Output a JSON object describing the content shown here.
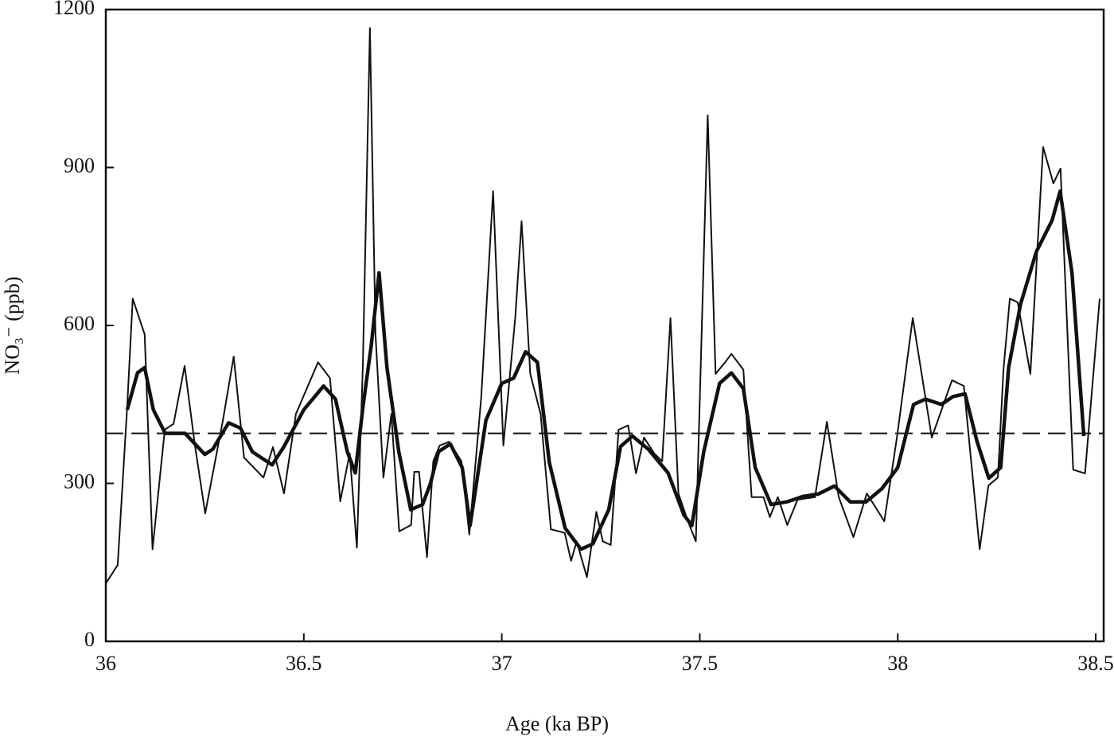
{
  "chart_data": {
    "type": "line",
    "xlabel": "Age (ka BP)",
    "ylabel": "NO₃⁻ (ppb)",
    "xlim": [
      36,
      38.52
    ],
    "ylim": [
      0,
      1200
    ],
    "xticks": [
      36,
      36.5,
      37,
      37.5,
      38,
      38.5
    ],
    "yticks": [
      0,
      300,
      600,
      900,
      1200
    ],
    "hline": 395,
    "hline_style": "dashed",
    "series": [
      {
        "color": "#111111",
        "width": 2,
        "x": [
          36.0,
          36.03,
          36.054,
          36.068,
          36.098,
          36.118,
          36.149,
          36.171,
          36.199,
          36.225,
          36.251,
          36.295,
          36.323,
          36.349,
          36.398,
          36.422,
          36.45,
          36.48,
          36.536,
          36.566,
          36.592,
          36.616,
          36.634,
          36.649,
          36.667,
          36.681,
          36.701,
          36.721,
          36.741,
          36.771,
          36.779,
          36.791,
          36.811,
          36.827,
          36.843,
          36.867,
          36.898,
          36.918,
          36.948,
          36.978,
          37.004,
          37.034,
          37.05,
          37.072,
          37.098,
          37.124,
          37.159,
          37.175,
          37.189,
          37.215,
          37.239,
          37.255,
          37.275,
          37.295,
          37.319,
          37.339,
          37.359,
          37.385,
          37.405,
          37.426,
          37.446,
          37.47,
          37.49,
          37.52,
          37.54,
          37.564,
          37.58,
          37.61,
          37.631,
          37.661,
          37.677,
          37.697,
          37.721,
          37.747,
          37.791,
          37.821,
          37.851,
          37.888,
          37.922,
          37.966,
          37.998,
          38.038,
          38.086,
          38.137,
          38.167,
          38.207,
          38.229,
          38.253,
          38.267,
          38.283,
          38.303,
          38.335,
          38.367,
          38.393,
          38.411,
          38.443,
          38.473,
          38.51
        ],
        "values": [
          110,
          145,
          447,
          651,
          583,
          175,
          402,
          413,
          523,
          372,
          243,
          417,
          541,
          349,
          311,
          369,
          281,
          432,
          530,
          500,
          266,
          357,
          178,
          523,
          1165,
          583,
          311,
          432,
          209,
          221,
          322,
          322,
          160,
          342,
          372,
          379,
          342,
          203,
          462,
          855,
          372,
          614,
          798,
          508,
          432,
          213,
          206,
          153,
          190,
          122,
          246,
          190,
          183,
          402,
          410,
          319,
          387,
          357,
          342,
          614,
          281,
          228,
          190,
          999,
          508,
          530,
          546,
          516,
          274,
          274,
          236,
          274,
          221,
          269,
          274,
          417,
          274,
          198,
          281,
          228,
          387,
          614,
          387,
          496,
          485,
          175,
          296,
          311,
          516,
          651,
          644,
          508,
          939,
          870,
          898,
          326,
          319,
          651
        ]
      },
      {
        "color": "#111111",
        "width": 4.5,
        "x": [
          36.054,
          36.08,
          36.098,
          36.12,
          36.15,
          36.2,
          36.25,
          36.27,
          36.31,
          36.34,
          36.37,
          36.42,
          36.45,
          36.5,
          36.55,
          36.58,
          36.61,
          36.63,
          36.65,
          36.67,
          36.69,
          36.71,
          36.74,
          36.77,
          36.8,
          36.82,
          36.84,
          36.87,
          36.9,
          36.92,
          36.96,
          37.0,
          37.03,
          37.06,
          37.09,
          37.12,
          37.16,
          37.2,
          37.23,
          37.27,
          37.3,
          37.33,
          37.37,
          37.42,
          37.46,
          37.48,
          37.51,
          37.55,
          37.58,
          37.61,
          37.64,
          37.68,
          37.72,
          37.76,
          37.8,
          37.84,
          37.88,
          37.92,
          37.96,
          38.0,
          38.04,
          38.07,
          38.11,
          38.14,
          38.17,
          38.2,
          38.23,
          38.26,
          38.28,
          38.31,
          38.35,
          38.39,
          38.41,
          38.44,
          38.47
        ],
        "values": [
          440,
          510,
          520,
          440,
          395,
          395,
          355,
          365,
          415,
          405,
          360,
          335,
          370,
          440,
          485,
          460,
          360,
          320,
          450,
          560,
          700,
          520,
          360,
          250,
          260,
          300,
          360,
          375,
          330,
          220,
          420,
          490,
          500,
          550,
          530,
          340,
          215,
          175,
          185,
          250,
          370,
          390,
          365,
          320,
          240,
          220,
          360,
          490,
          510,
          480,
          330,
          260,
          265,
          275,
          280,
          295,
          265,
          265,
          290,
          330,
          450,
          460,
          450,
          465,
          470,
          380,
          310,
          330,
          520,
          640,
          740,
          800,
          855,
          700,
          390
        ]
      }
    ]
  }
}
